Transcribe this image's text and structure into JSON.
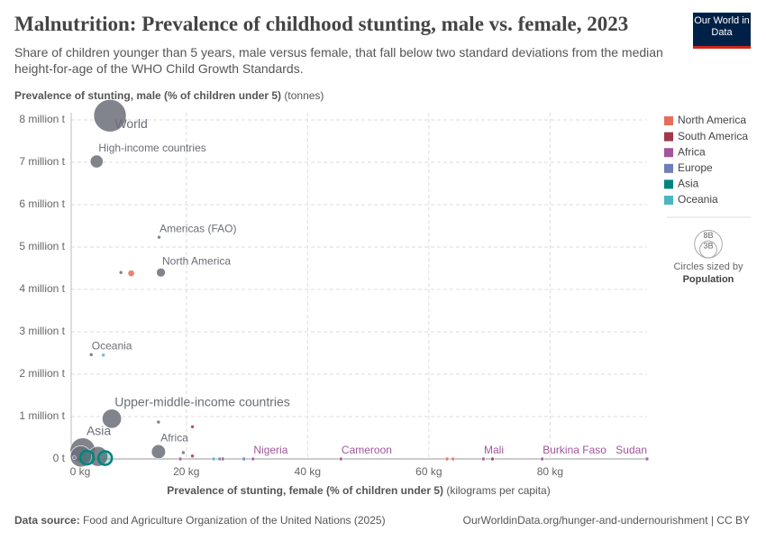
{
  "chart_data": {
    "type": "scatter",
    "title": "Malnutrition: Prevalence of childhood stunting, male vs. female, 2023",
    "subtitle": "Share of children younger than 5 years, male versus female, that fall below two standard deviations from the median height-for-age of the WHO Child Growth Standards.",
    "y_label": "Prevalence of stunting, male (% of children under 5)",
    "y_unit": "(tonnes)",
    "x_label": "Prevalence of stunting, female (% of children under 5)",
    "x_unit": "(kilograms per capita)",
    "xlim": [
      1,
      96
    ],
    "ylim": [
      0,
      8170000
    ],
    "xticks": [
      {
        "value": 0,
        "label": "0 kg"
      },
      {
        "value": 20,
        "label": "20 kg"
      },
      {
        "value": 40,
        "label": "40 kg"
      },
      {
        "value": 60,
        "label": "60 kg"
      },
      {
        "value": 80,
        "label": "80 kg"
      }
    ],
    "yticks": [
      {
        "value": 0,
        "label": "0 t"
      },
      {
        "value": 1000000,
        "label": "1 million t"
      },
      {
        "value": 2000000,
        "label": "2 million t"
      },
      {
        "value": 3000000,
        "label": "3 million t"
      },
      {
        "value": 4000000,
        "label": "4 million t"
      },
      {
        "value": 5000000,
        "label": "5 million t"
      },
      {
        "value": 6000000,
        "label": "6 million t"
      },
      {
        "value": 7000000,
        "label": "7 million t"
      },
      {
        "value": 8000000,
        "label": "8 million t"
      }
    ],
    "grid": true,
    "aggregates": {
      "color": "#6b6e78",
      "labels": [
        "World",
        "High-income countries",
        "Americas (FAO)",
        "North America",
        "Oceania",
        "Upper-middle-income countries",
        "Africa",
        "Asia",
        null,
        null,
        null,
        null,
        null
      ],
      "x": [
        7.4,
        5.2,
        15.5,
        15.8,
        4.3,
        7.7,
        15.4,
        2.9,
        5.4,
        2.6,
        15.4,
        9.2,
        19.5
      ],
      "y": [
        8100000,
        7020000,
        5230000,
        4400000,
        2460000,
        950000,
        170000,
        200000,
        60000,
        60000,
        870000,
        4400000,
        150000
      ],
      "size": [
        8000000000,
        1250000000,
        20000000,
        600000000,
        45000000,
        2800000000,
        1500000000,
        4800000000,
        3000000000,
        3400000000,
        70000000,
        20000000,
        20000000
      ]
    },
    "series": [
      {
        "name": "North America",
        "color": "#e56e5a",
        "labels": [
          null,
          null,
          null
        ],
        "x": [
          10.9,
          63,
          64
        ],
        "y": [
          4380000,
          0,
          0
        ],
        "size": [
          330000000,
          10000000,
          10000000
        ]
      },
      {
        "name": "South America",
        "color": "#a2364a",
        "labels": [
          null,
          null,
          null
        ],
        "x": [
          21,
          21,
          70.5
        ],
        "y": [
          760000,
          70000,
          0
        ],
        "size": [
          20000000,
          30000000,
          10000000
        ]
      },
      {
        "name": "Africa",
        "color": "#a2559c",
        "labels": [
          "Nigeria",
          "Cameroon",
          "Mali",
          "Burkina Faso",
          "Sudan",
          null,
          null
        ],
        "x": [
          31,
          45.5,
          69,
          78.7,
          96,
          19,
          26
        ],
        "y": [
          0,
          0,
          0,
          0,
          0,
          0,
          0
        ],
        "size": [
          10000000,
          10000000,
          10000000,
          10000000,
          10000000,
          10000000,
          10000000
        ]
      },
      {
        "name": "Europe",
        "color": "#6d7fb8",
        "labels": [
          null,
          null,
          null
        ],
        "x": [
          1.5,
          25.5,
          29.5
        ],
        "y": [
          30000,
          0,
          0
        ],
        "size": [
          80000000,
          10000000,
          10000000
        ]
      },
      {
        "name": "Asia",
        "color": "#00847e",
        "labels": [
          null,
          null
        ],
        "x": [
          3.6,
          6.6
        ],
        "y": [
          30000,
          20000
        ],
        "size": [
          1400000000,
          1410000000
        ]
      },
      {
        "name": "Oceania",
        "color": "#4cb5c2",
        "labels": [
          null,
          null
        ],
        "x": [
          6.3,
          24.5
        ],
        "y": [
          2450000,
          0
        ],
        "size": [
          5000000,
          5000000
        ]
      }
    ],
    "size_legend": {
      "title": "Circles sized by",
      "variable": "Population",
      "values": [
        {
          "value": 8000000000,
          "label": "8B"
        },
        {
          "value": 3000000000,
          "label": "3B"
        }
      ]
    }
  },
  "logo": "Our World in Data",
  "footer": {
    "source_label": "Data source:",
    "source": "Food and Agriculture Organization of the United Nations (2025)",
    "url": "OurWorldinData.org/hunger-and-undernourishment | CC BY"
  }
}
